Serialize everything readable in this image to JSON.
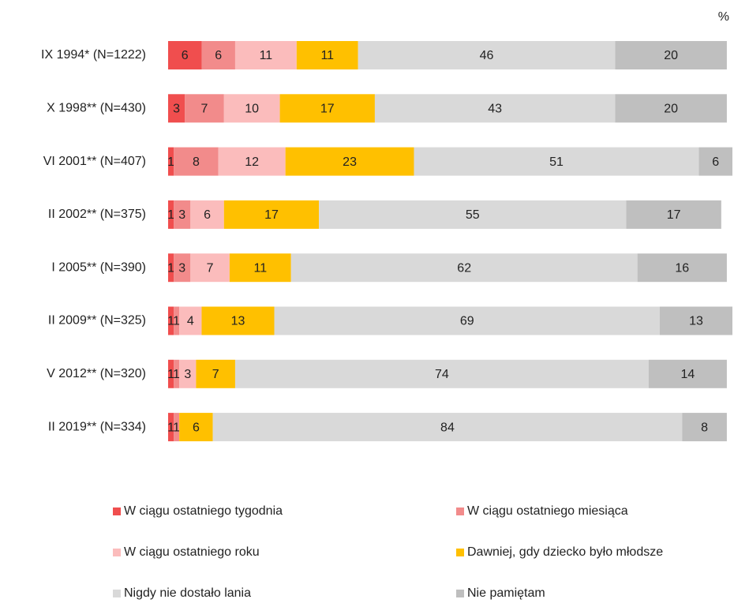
{
  "chart_data": {
    "type": "stacked-bar-horizontal",
    "unit": "%",
    "categories": [
      "IX 1994* (N=1222)",
      "X 1998** (N=430)",
      "VI 2001** (N=407)",
      "II 2002** (N=375)",
      "I 2005** (N=390)",
      "II 2009** (N=325)",
      "V 2012** (N=320)",
      "II 2019** (N=334)"
    ],
    "series": [
      {
        "name": "W ciągu ostatniego tygodnia",
        "color": "#f04e4e",
        "values": [
          6,
          3,
          1,
          1,
          1,
          1,
          1,
          1
        ]
      },
      {
        "name": "W ciągu ostatniego miesiąca",
        "color": "#f28b8b",
        "values": [
          6,
          7,
          8,
          3,
          3,
          1,
          1,
          1
        ]
      },
      {
        "name": "W ciągu ostatniego roku",
        "color": "#fbbcbc",
        "values": [
          11,
          10,
          12,
          6,
          7,
          4,
          3,
          0
        ]
      },
      {
        "name": "Dawniej, gdy dziecko było młodsze",
        "color": "#ffc000",
        "values": [
          11,
          17,
          23,
          17,
          11,
          13,
          7,
          6
        ]
      },
      {
        "name": "Nigdy nie dostało lania",
        "color": "#d9d9d9",
        "values": [
          46,
          43,
          51,
          55,
          62,
          69,
          74,
          84
        ]
      },
      {
        "name": "Nie pamiętam",
        "color": "#bfbfbf",
        "values": [
          20,
          20,
          6,
          17,
          16,
          13,
          14,
          8
        ]
      }
    ],
    "legend": "bottom"
  }
}
